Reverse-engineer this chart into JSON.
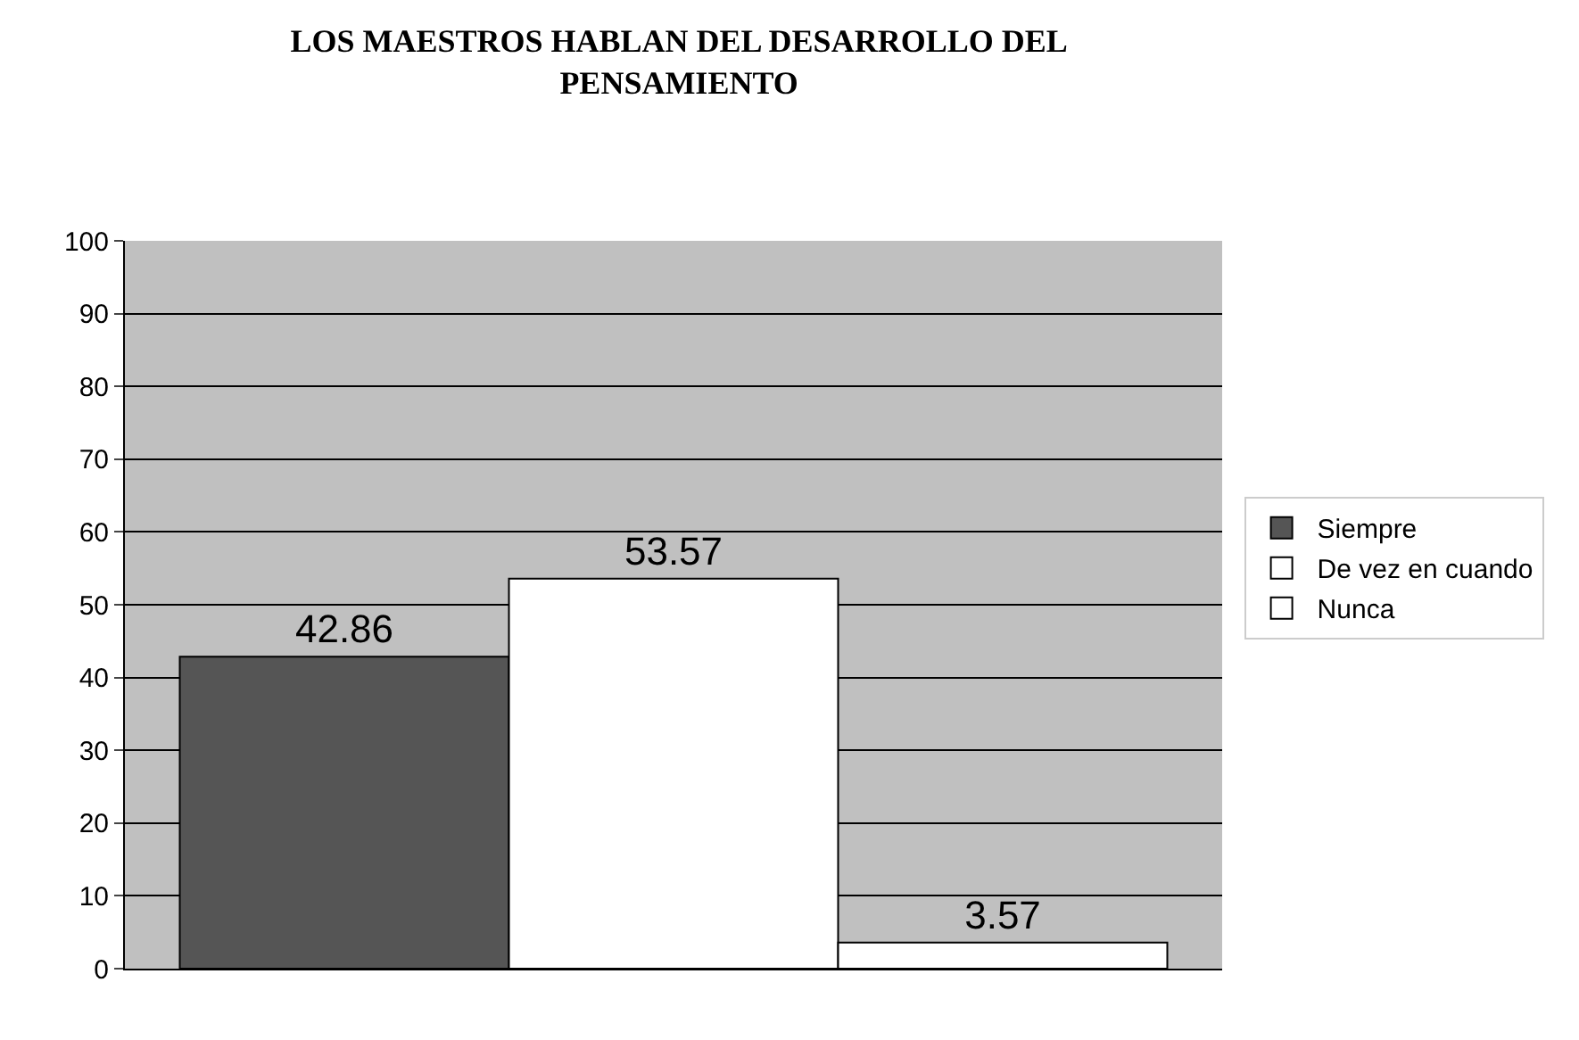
{
  "chart_data": {
    "type": "bar",
    "title": "LOS MAESTROS HABLAN DEL DESARROLLO DEL PENSAMIENTO",
    "categories": [
      null
    ],
    "series": [
      {
        "name": "Siempre",
        "color": "#555555",
        "values": [
          42.86
        ]
      },
      {
        "name": "De vez en cuando",
        "color": "#ffffff",
        "values": [
          53.57
        ]
      },
      {
        "name": "Nunca",
        "color": "#ffffff",
        "values": [
          3.57
        ]
      }
    ],
    "ylim": [
      0,
      100
    ],
    "yticks": [
      0,
      10,
      20,
      30,
      40,
      50,
      60,
      70,
      80,
      90,
      100
    ],
    "grid": "y",
    "legend": "right",
    "data_labels": true
  }
}
